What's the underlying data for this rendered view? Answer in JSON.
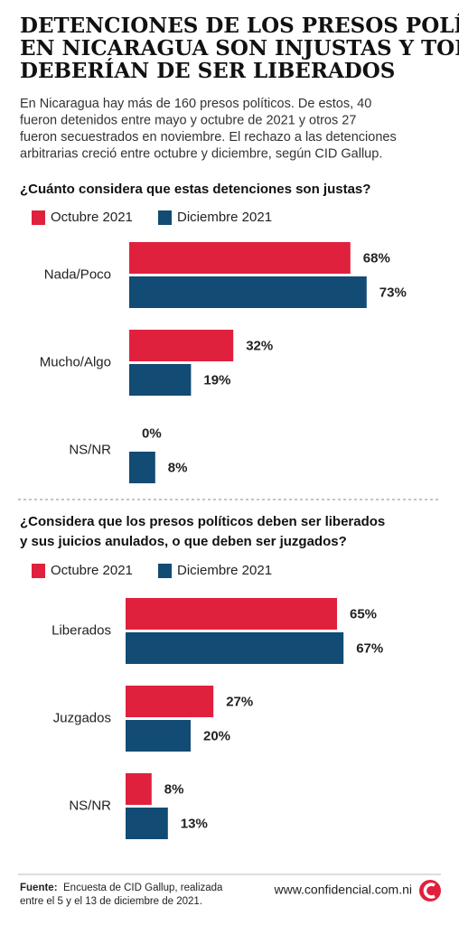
{
  "header": {
    "title_lines": [
      "DETENCIONES DE LOS PRESOS POLÍTICOS",
      "EN NICARAGUA SON INJUSTAS Y TODOS",
      "DEBERÍAN DE SER LIBERADOS"
    ],
    "subtitle_lines": [
      "En Nicaragua hay más de 160 presos políticos. De estos, 40",
      "fueron detenidos entre mayo y octubre de 2021 y otros 27",
      "fueron secuestrados en noviembre. El rechazo a las detenciones",
      "arbitrarias creció entre octubre y diciembre, según CID Gallup."
    ]
  },
  "chart_data": [
    {
      "type": "bar",
      "orientation": "horizontal",
      "title": [
        "¿Cuánto considera que estas detenciones son justas?"
      ],
      "categories": [
        "Nada/Poco",
        "Mucho/Algo",
        "NS/NR"
      ],
      "series": [
        {
          "name": "Octubre 2021",
          "color": "#e0213d",
          "values": [
            68,
            32,
            0
          ],
          "value_labels": [
            "68%",
            "32%",
            "0%"
          ]
        },
        {
          "name": "Diciembre 2021",
          "color": "#124b74",
          "values": [
            73,
            19,
            8
          ],
          "value_labels": [
            "73%",
            "19%",
            "8%"
          ]
        }
      ]
    },
    {
      "type": "bar",
      "orientation": "horizontal",
      "title": [
        "¿Considera que los presos políticos deben ser liberados",
        "y sus juicios anulados, o que deben ser juzgados?"
      ],
      "categories": [
        "Liberados",
        "Juzgados",
        "NS/NR"
      ],
      "series": [
        {
          "name": "Octubre 2021",
          "color": "#e0213d",
          "values": [
            65,
            27,
            8
          ],
          "value_labels": [
            "65%",
            "27%",
            "8%"
          ]
        },
        {
          "name": "Diciembre 2021",
          "color": "#124b74",
          "values": [
            67,
            20,
            13
          ],
          "value_labels": [
            "67%",
            "20%",
            "13%"
          ]
        }
      ]
    }
  ],
  "footer": {
    "source_label": "Fuente:",
    "source_lines": [
      "Encuesta de CID Gallup, realizada",
      "entre el 5 y el 13 de diciembre de 2021."
    ],
    "website": "www.confidencial.com.ni"
  }
}
